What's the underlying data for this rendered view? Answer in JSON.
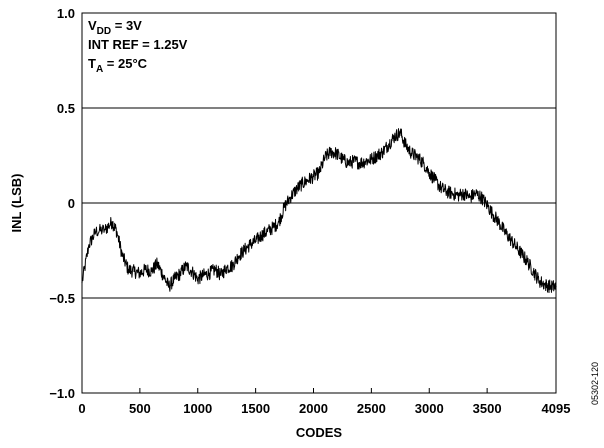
{
  "chart_data": {
    "type": "line",
    "title": "",
    "xlabel": "CODES",
    "ylabel": "INL (LSB)",
    "xlim": [
      0,
      4095
    ],
    "ylim": [
      -1.0,
      1.0
    ],
    "x_ticks": [
      0,
      500,
      1000,
      1500,
      2000,
      2500,
      3000,
      3500,
      4095
    ],
    "x_tick_labels": [
      "0",
      "500",
      "1000",
      "1500",
      "2000",
      "2500",
      "3000",
      "3500",
      "4095"
    ],
    "y_ticks": [
      1.0,
      0.5,
      0,
      -0.5,
      -1.0
    ],
    "y_tick_labels": [
      "1.0",
      "0.5",
      "0",
      "−0.5",
      "−1.0"
    ],
    "gridlines_y": [
      0.5,
      0,
      -0.5
    ],
    "grid": "horizontal",
    "annotations": [
      {
        "main": "V",
        "sub": "DD",
        "rest": " = 3V"
      },
      {
        "main": "INT REF = 1.25V",
        "sub": "",
        "rest": ""
      },
      {
        "main": "T",
        "sub": "A",
        "rest": " = 25°C"
      }
    ],
    "figure_id": "05302-120",
    "series": [
      {
        "color": "#000000",
        "x": [
          0,
          60,
          120,
          200,
          260,
          300,
          350,
          400,
          450,
          500,
          550,
          600,
          650,
          700,
          750,
          800,
          850,
          900,
          950,
          1000,
          1050,
          1100,
          1150,
          1200,
          1250,
          1300,
          1350,
          1400,
          1450,
          1500,
          1550,
          1600,
          1650,
          1700,
          1750,
          1800,
          1850,
          1900,
          1950,
          2000,
          2050,
          2100,
          2150,
          2200,
          2250,
          2300,
          2350,
          2400,
          2450,
          2500,
          2550,
          2600,
          2650,
          2700,
          2750,
          2800,
          2850,
          2900,
          2950,
          3000,
          3050,
          3100,
          3150,
          3200,
          3250,
          3300,
          3350,
          3400,
          3450,
          3500,
          3550,
          3600,
          3650,
          3700,
          3750,
          3800,
          3850,
          3900,
          3950,
          4000,
          4050,
          4095
        ],
        "y": [
          -0.42,
          -0.22,
          -0.15,
          -0.14,
          -0.1,
          -0.15,
          -0.28,
          -0.35,
          -0.36,
          -0.37,
          -0.35,
          -0.36,
          -0.32,
          -0.38,
          -0.44,
          -0.4,
          -0.37,
          -0.33,
          -0.36,
          -0.4,
          -0.38,
          -0.37,
          -0.35,
          -0.38,
          -0.34,
          -0.33,
          -0.28,
          -0.25,
          -0.22,
          -0.2,
          -0.17,
          -0.15,
          -0.13,
          -0.1,
          -0.02,
          0.03,
          0.07,
          0.1,
          0.12,
          0.14,
          0.16,
          0.24,
          0.27,
          0.26,
          0.23,
          0.21,
          0.22,
          0.21,
          0.22,
          0.23,
          0.25,
          0.27,
          0.31,
          0.35,
          0.37,
          0.3,
          0.26,
          0.24,
          0.21,
          0.16,
          0.12,
          0.08,
          0.06,
          0.05,
          0.04,
          0.05,
          0.03,
          0.05,
          0.03,
          -0.01,
          -0.06,
          -0.1,
          -0.15,
          -0.19,
          -0.23,
          -0.27,
          -0.31,
          -0.36,
          -0.41,
          -0.43,
          -0.44,
          -0.44
        ]
      }
    ]
  }
}
